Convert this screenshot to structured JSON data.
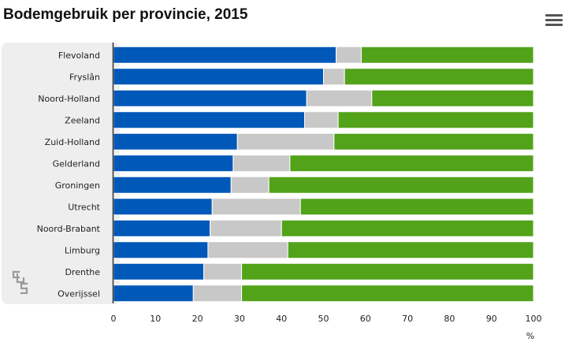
{
  "title": "Bodemgebruik per provincie, 2015",
  "menu_icon": "hamburger-menu-icon",
  "logo": "CBS",
  "chart_data": {
    "type": "bar",
    "orientation": "horizontal",
    "stacked": true,
    "title": "Bodemgebruik per provincie, 2015",
    "categories": [
      "Flevoland",
      "Fryslân",
      "Noord-Holland",
      "Zeeland",
      "Zuid-Holland",
      "Gelderland",
      "Groningen",
      "Utrecht",
      "Noord-Brabant",
      "Limburg",
      "Drenthe",
      "Overijssel"
    ],
    "series": [
      {
        "color": "#0058b8",
        "values": [
          53,
          50,
          46,
          45.5,
          29.5,
          28.5,
          28,
          23.5,
          23,
          22.5,
          21.5,
          19
        ]
      },
      {
        "color": "#c8c8c8",
        "values": [
          6,
          5,
          15.5,
          8,
          23,
          13.5,
          9,
          21,
          17,
          19,
          9,
          11.5
        ]
      },
      {
        "color": "#52a21a",
        "values": [
          41,
          45,
          38.5,
          46.5,
          47.5,
          58,
          63,
          55.5,
          60,
          58.5,
          69.5,
          69.5
        ]
      }
    ],
    "xlim": [
      0,
      100
    ],
    "xticks": [
      0,
      10,
      20,
      30,
      40,
      50,
      60,
      70,
      80,
      90,
      100
    ],
    "xunit": "%",
    "grid": false,
    "legend": "none"
  }
}
